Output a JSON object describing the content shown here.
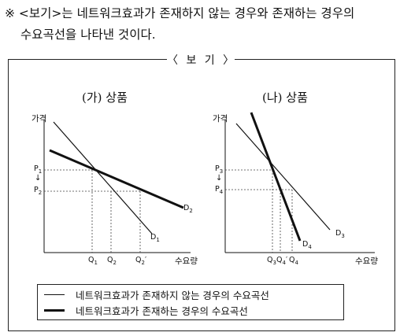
{
  "intro": {
    "line1": "※ <보기>는 네트워크효과가 존재하지 않는 경우와 존재하는 경우의",
    "line2": "수요곡선을 나타낸 것이다."
  },
  "box_title": "〈 보 기 〉",
  "chart_data": [
    {
      "type": "line",
      "title": "(가) 상품",
      "ylabel": "가격",
      "xlabel": "수요량",
      "y_ticks": [
        "P1",
        "P2"
      ],
      "x_ticks": [
        "Q1",
        "Q2",
        "Q2′"
      ],
      "series": [
        {
          "name": "D1",
          "style": "thin"
        },
        {
          "name": "D2",
          "style": "thick"
        }
      ]
    },
    {
      "type": "line",
      "title": "(나) 상품",
      "ylabel": "가격",
      "xlabel": "수요량",
      "y_ticks": [
        "P3",
        "P4"
      ],
      "x_ticks": [
        "Q3",
        "Q4′",
        "Q4"
      ],
      "series": [
        {
          "name": "D3",
          "style": "thin"
        },
        {
          "name": "D4",
          "style": "thick"
        }
      ]
    }
  ],
  "labels": {
    "a_ylabel": "가격",
    "a_xlabel": "수요량",
    "a_p1": "P",
    "a_p1_sub": "1",
    "a_p2": "P",
    "a_p2_sub": "2",
    "a_q1": "Q",
    "a_q1_sub": "1",
    "a_q2": "Q",
    "a_q2_sub": "2",
    "a_q2p": "Q",
    "a_q2p_sub": "2",
    "a_q2p_prime": "′",
    "a_d1": "D",
    "a_d1_sub": "1",
    "a_d2": "D",
    "a_d2_sub": "2",
    "b_ylabel": "가격",
    "b_xlabel": "수요량",
    "b_p3": "P",
    "b_p3_sub": "3",
    "b_p4": "P",
    "b_p4_sub": "4",
    "b_q3": "Q",
    "b_q3_sub": "3",
    "b_q4p": "Q",
    "b_q4p_sub": "4",
    "b_q4p_prime": "′",
    "b_q4": "Q",
    "b_q4_sub": "4",
    "b_d3": "D",
    "b_d3_sub": "3",
    "b_d4": "D",
    "b_d4_sub": "4",
    "arrow": "↓"
  },
  "legend": {
    "thin": "네트워크효과가 존재하지 않는 경우의 수요곡선",
    "thick": "네트워크효과가 존재하는 경우의 수요곡선"
  }
}
